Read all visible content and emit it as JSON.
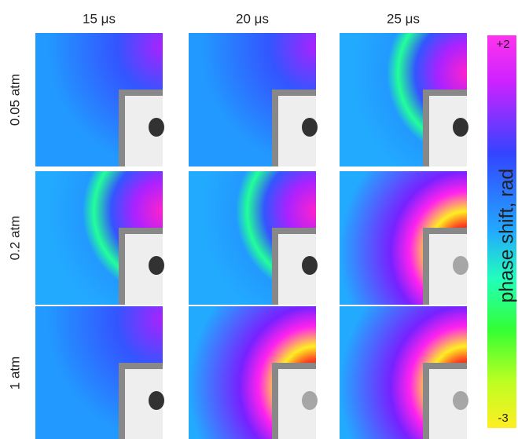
{
  "columns": [
    "15 μs",
    "20 μs",
    "25 μs"
  ],
  "rows": [
    "0.05 atm",
    "0.2 atm",
    "1 atm"
  ],
  "colorbar": {
    "label": "phase shift, rad",
    "lim": [
      -3,
      2
    ],
    "ticks": [
      {
        "value": 2,
        "label": "+2"
      },
      -3
    ]
  }
}
